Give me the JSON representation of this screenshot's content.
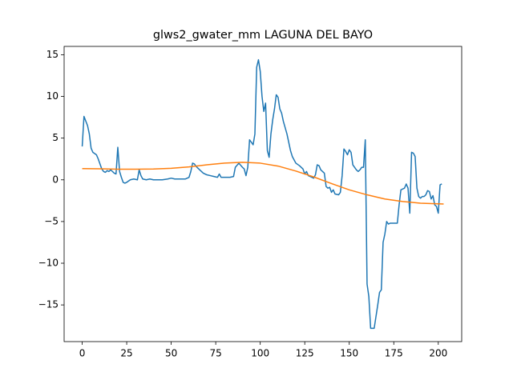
{
  "chart_data": {
    "type": "line",
    "title": "glws2_gwater_mm LAGUNA DEL BAYO",
    "xlim": [
      -10.15,
      213.15
    ],
    "ylim": [
      -19.4,
      16.0
    ],
    "xticks": [
      0,
      25,
      50,
      75,
      100,
      125,
      150,
      175,
      200
    ],
    "yticks": [
      {
        "value": -15,
        "label": "−15"
      },
      {
        "value": -10,
        "label": "−10"
      },
      {
        "value": -5,
        "label": "−5"
      },
      0,
      5,
      10,
      15
    ],
    "series": [
      {
        "color": "#1f77b4",
        "x": [
          0,
          1,
          3,
          4,
          5,
          6,
          8,
          9,
          11,
          12,
          13,
          14,
          15,
          16,
          17,
          18,
          19,
          20,
          21,
          22,
          23,
          24,
          25,
          27,
          29,
          31,
          32,
          33,
          34,
          36,
          38,
          40,
          42,
          45,
          48,
          50,
          52,
          55,
          58,
          60,
          61,
          62,
          63,
          64,
          66,
          68,
          70,
          72,
          74,
          76,
          77,
          78,
          80,
          83,
          85,
          86,
          88,
          90,
          91,
          92,
          93,
          94,
          95,
          96,
          97,
          98,
          99,
          100,
          101,
          102,
          103,
          104,
          105,
          106,
          107,
          108,
          109,
          110,
          111,
          112,
          113,
          115,
          117,
          118,
          120,
          122,
          124,
          125,
          126,
          127,
          128,
          130,
          131,
          132,
          133,
          134,
          136,
          137,
          138,
          139,
          140,
          141,
          142,
          144,
          145,
          146,
          147,
          148,
          149,
          150,
          151,
          152,
          153,
          154,
          155,
          156,
          157,
          158,
          159,
          160,
          161,
          162,
          164,
          166,
          167,
          168,
          169,
          170,
          171,
          172,
          173,
          177,
          178,
          179,
          181,
          182,
          183,
          184,
          185,
          186,
          187,
          188,
          189,
          190,
          191,
          192,
          193,
          194,
          195,
          196,
          197,
          198,
          199,
          200,
          201,
          202
        ],
        "values": [
          4.0,
          7.6,
          6.5,
          5.5,
          3.8,
          3.3,
          3.0,
          2.5,
          1.3,
          1.0,
          0.9,
          1.1,
          1.0,
          1.2,
          1.0,
          0.8,
          0.7,
          3.9,
          1.0,
          0.3,
          -0.3,
          -0.4,
          -0.3,
          0.0,
          0.1,
          0.0,
          1.2,
          0.5,
          0.1,
          0.0,
          0.1,
          0.0,
          0.0,
          0.0,
          0.1,
          0.2,
          0.1,
          0.1,
          0.1,
          0.3,
          1.0,
          2.0,
          1.9,
          1.6,
          1.2,
          0.8,
          0.6,
          0.5,
          0.4,
          0.3,
          0.7,
          0.3,
          0.3,
          0.3,
          0.4,
          1.5,
          2.0,
          1.5,
          1.3,
          0.5,
          1.5,
          4.8,
          4.5,
          4.2,
          5.5,
          13.5,
          14.4,
          13.0,
          10.0,
          8.2,
          9.2,
          3.5,
          2.7,
          5.5,
          7.2,
          8.5,
          10.2,
          9.9,
          8.5,
          8.0,
          7.0,
          5.5,
          3.5,
          2.8,
          2.0,
          1.7,
          1.3,
          0.7,
          1.0,
          0.5,
          0.4,
          0.2,
          0.6,
          1.8,
          1.7,
          1.2,
          0.8,
          -0.8,
          -1.0,
          -0.9,
          -1.5,
          -1.2,
          -1.7,
          -1.8,
          -1.5,
          0.5,
          3.7,
          3.4,
          3.0,
          3.6,
          3.3,
          1.8,
          1.5,
          1.2,
          1.0,
          1.2,
          1.5,
          1.5,
          4.8,
          -12.5,
          -14.0,
          -17.8,
          -17.8,
          -15.0,
          -13.5,
          -13.2,
          -7.5,
          -6.5,
          -5.0,
          -5.3,
          -5.2,
          -5.2,
          -3.0,
          -1.2,
          -1.0,
          -0.5,
          -1.0,
          -4.0,
          3.3,
          3.2,
          2.8,
          -1.0,
          -2.0,
          -2.2,
          -2.0,
          -2.0,
          -1.8,
          -1.3,
          -1.4,
          -2.3,
          -1.9,
          -3.0,
          -3.2,
          -4.0,
          -0.6,
          -0.5
        ]
      },
      {
        "color": "#ff7f0e",
        "x": [
          0,
          10,
          20,
          30,
          40,
          50,
          60,
          70,
          80,
          90,
          100,
          110,
          120,
          130,
          140,
          150,
          160,
          170,
          180,
          190,
          203
        ],
        "values": [
          1.35,
          1.32,
          1.28,
          1.27,
          1.3,
          1.38,
          1.55,
          1.8,
          2.0,
          2.1,
          2.0,
          1.65,
          1.05,
          0.35,
          -0.45,
          -1.2,
          -1.8,
          -2.3,
          -2.6,
          -2.8,
          -2.9
        ]
      }
    ]
  }
}
